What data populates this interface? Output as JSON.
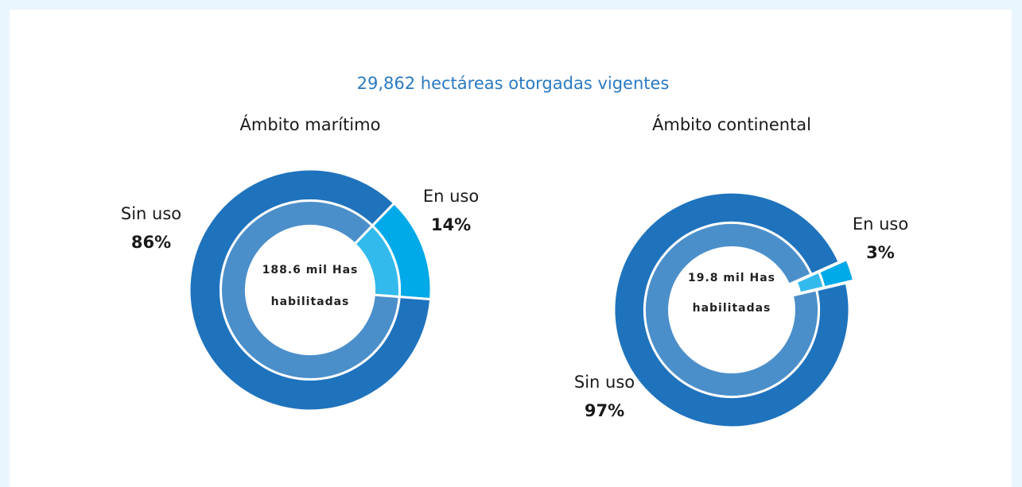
{
  "title": "29,862 hectáreas otorgadas vigentes",
  "chart_data": [
    {
      "type": "pie",
      "title": "Ámbito marítimo",
      "center_label": [
        "188.6 mil Has",
        "habilitadas"
      ],
      "categories": [
        "En uso",
        "Sin uso"
      ],
      "values": [
        14,
        86
      ],
      "value_labels": [
        "14%",
        "86%"
      ],
      "colors": [
        "#00a9e8",
        "#1f73bd"
      ]
    },
    {
      "type": "pie",
      "title": "Ámbito continental",
      "center_label": [
        "19.8 mil Has",
        "habilitadas"
      ],
      "categories": [
        "En uso",
        "Sin uso"
      ],
      "values": [
        3,
        97
      ],
      "value_labels": [
        "3%",
        "97%"
      ],
      "colors": [
        "#00a9e8",
        "#1f73bd"
      ]
    }
  ]
}
